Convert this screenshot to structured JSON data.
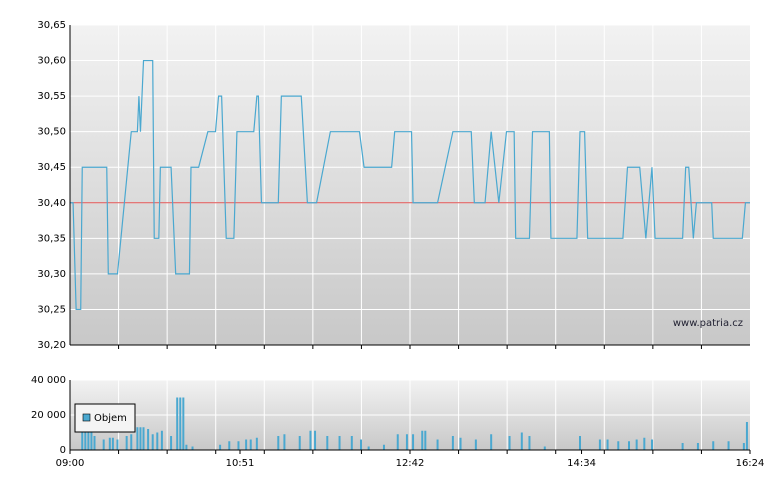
{
  "chart_data": [
    {
      "type": "line",
      "color": "#4aa8d0",
      "grid": true,
      "annotation": "www.patria.cz",
      "reference_line": {
        "value": 30.4,
        "color": "#e05050"
      },
      "xlim": [
        "09:00",
        "16:24"
      ],
      "ylim": [
        30.2,
        30.65
      ],
      "yticks": [
        {
          "value": 30.2,
          "label": "30,20"
        },
        {
          "value": 30.25,
          "label": "30,25"
        },
        {
          "value": 30.3,
          "label": "30,30"
        },
        {
          "value": 30.35,
          "label": "30,35"
        },
        {
          "value": 30.4,
          "label": "30,40"
        },
        {
          "value": 30.45,
          "label": "30,45"
        },
        {
          "value": 30.5,
          "label": "30,50"
        },
        {
          "value": 30.55,
          "label": "30,55"
        },
        {
          "value": 30.6,
          "label": "30,60"
        },
        {
          "value": 30.65,
          "label": "30,65"
        }
      ],
      "x": [
        "09:00",
        "09:02",
        "09:04",
        "09:07",
        "09:08",
        "09:24",
        "09:25",
        "09:31",
        "09:40",
        "09:44",
        "09:45",
        "09:46",
        "09:48",
        "09:54",
        "09:55",
        "09:58",
        "09:59",
        "10:06",
        "10:09",
        "10:18",
        "10:19",
        "10:24",
        "10:30",
        "10:35",
        "10:37",
        "10:39",
        "10:42",
        "10:47",
        "10:49",
        "11:00",
        "11:02",
        "11:03",
        "11:05",
        "11:16",
        "11:18",
        "11:31",
        "11:35",
        "11:41",
        "11:50",
        "12:09",
        "12:12",
        "12:30",
        "12:32",
        "12:43",
        "12:44",
        "13:00",
        "13:10",
        "13:22",
        "13:24",
        "13:31",
        "13:35",
        "13:40",
        "13:45",
        "13:50",
        "13:51",
        "14:00",
        "14:02",
        "14:13",
        "14:14",
        "14:31",
        "14:33",
        "14:36",
        "14:38",
        "15:01",
        "15:04",
        "15:12",
        "15:16",
        "15:20",
        "15:22",
        "15:40",
        "15:42",
        "15:44",
        "15:47",
        "15:49",
        "15:59",
        "16:00",
        "16:19",
        "16:21",
        "16:24"
      ],
      "values": [
        30.4,
        30.4,
        30.25,
        30.25,
        30.45,
        30.45,
        30.3,
        30.3,
        30.5,
        30.5,
        30.55,
        30.5,
        30.6,
        30.6,
        30.35,
        30.35,
        30.45,
        30.45,
        30.3,
        30.3,
        30.45,
        30.45,
        30.5,
        30.5,
        30.55,
        30.55,
        30.35,
        30.35,
        30.5,
        30.5,
        30.55,
        30.55,
        30.4,
        30.4,
        30.55,
        30.55,
        30.4,
        30.4,
        30.5,
        30.5,
        30.45,
        30.45,
        30.5,
        30.5,
        30.4,
        30.4,
        30.5,
        30.5,
        30.4,
        30.4,
        30.5,
        30.4,
        30.5,
        30.5,
        30.35,
        30.35,
        30.5,
        30.5,
        30.35,
        30.35,
        30.5,
        30.5,
        30.35,
        30.35,
        30.45,
        30.45,
        30.35,
        30.45,
        30.35,
        30.35,
        30.45,
        30.45,
        30.35,
        30.4,
        30.4,
        30.35,
        30.35,
        30.4,
        30.4
      ]
    },
    {
      "type": "bar",
      "grid": true,
      "legend": "upper-left",
      "xlim": [
        "09:00",
        "16:24"
      ],
      "xticks": [
        "09:00",
        "10:51",
        "12:42",
        "14:34",
        "16:24"
      ],
      "ylim": [
        0,
        40000
      ],
      "yticks": [
        0,
        {
          "value": 20000,
          "label": "20 000"
        },
        {
          "value": 40000,
          "label": "40 000"
        }
      ],
      "x": [
        "09:08",
        "09:10",
        "09:12",
        "09:14",
        "09:16",
        "09:22",
        "09:26",
        "09:28",
        "09:31",
        "09:37",
        "09:40",
        "09:44",
        "09:46",
        "09:48",
        "09:51",
        "09:54",
        "09:57",
        "10:00",
        "10:06",
        "10:10",
        "10:12",
        "10:14",
        "10:16",
        "10:20",
        "10:38",
        "10:44",
        "10:50",
        "10:55",
        "10:58",
        "11:02",
        "11:16",
        "11:20",
        "11:30",
        "11:37",
        "11:40",
        "11:48",
        "11:56",
        "12:04",
        "12:10",
        "12:15",
        "12:25",
        "12:34",
        "12:40",
        "12:44",
        "12:50",
        "12:52",
        "13:00",
        "13:10",
        "13:15",
        "13:25",
        "13:35",
        "13:47",
        "13:55",
        "14:00",
        "14:10",
        "14:33",
        "14:46",
        "14:51",
        "14:58",
        "15:05",
        "15:10",
        "15:15",
        "15:20",
        "15:40",
        "15:50",
        "16:00",
        "16:10",
        "16:20",
        "16:22"
      ],
      "series": [
        {
          "name": "Objem",
          "color": "#4aa8d0",
          "values": [
            12000,
            12000,
            12000,
            12000,
            8000,
            6000,
            7000,
            7000,
            6000,
            8000,
            9000,
            13000,
            13000,
            13000,
            12000,
            9000,
            10000,
            11000,
            8000,
            30000,
            30000,
            30000,
            3000,
            2000,
            3000,
            5000,
            5000,
            6000,
            6000,
            7000,
            8000,
            9000,
            8000,
            11000,
            11000,
            8000,
            8000,
            8000,
            6000,
            2000,
            3000,
            9000,
            9000,
            9000,
            11000,
            11000,
            6000,
            8000,
            7000,
            6000,
            9000,
            8000,
            10000,
            8000,
            2000,
            8000,
            6000,
            6000,
            5000,
            5000,
            6000,
            7000,
            6000,
            4000,
            4000,
            5000,
            5000,
            4000,
            16000
          ]
        }
      ]
    }
  ]
}
